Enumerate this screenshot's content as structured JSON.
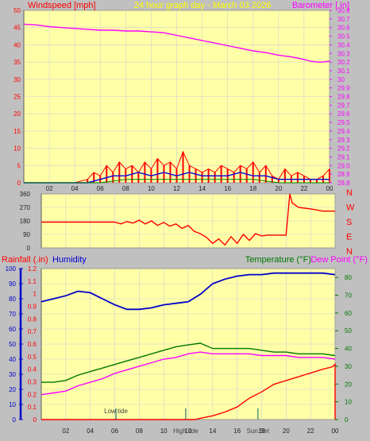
{
  "title": "24 hour graph day - March 03 2026",
  "colors": {
    "plot_bg": "#ffffa8",
    "frame_bg": "#c0c0c0",
    "wind_gust": "#ff0000",
    "wind_avg": "#0000dd",
    "wind_extra": "#008000",
    "barometer": "#ff00ff",
    "direction": "#ff0000",
    "humidity": "#0000cc",
    "temperature": "#007700",
    "dewpoint": "#ff00ff",
    "rainfall": "#ff0000",
    "grid": "#d0d0d0"
  },
  "x_ticks": [
    "02",
    "04",
    "06",
    "08",
    "10",
    "12",
    "14",
    "16",
    "18",
    "20",
    "22",
    "00"
  ],
  "chart_data": [
    {
      "type": "line",
      "name": "wind-barometer",
      "left_label": "Windspeed [mph]",
      "right_label": "Barometer [.in]",
      "left_ticks": [
        "0",
        "5",
        "10",
        "15",
        "20",
        "25",
        "30",
        "35",
        "40",
        "45",
        "50"
      ],
      "right_ticks": [
        "28.8",
        "28.9",
        "29.0",
        "29.1",
        "29.2",
        "29.3",
        "29.4",
        "29.5",
        "29.6",
        "29.7",
        "29.8",
        "29.9",
        "30",
        "30.1",
        "30.2",
        "30.3",
        "30.4",
        "30.5",
        "30.6",
        "30.7",
        "30.8"
      ],
      "ylim_left": [
        0,
        50
      ],
      "ylim_right": [
        28.8,
        30.8
      ],
      "x_hours": [
        0,
        24
      ],
      "barometer": {
        "x": [
          0,
          1,
          2,
          3,
          4,
          5,
          6,
          7,
          8,
          9,
          10,
          11,
          12,
          13,
          14,
          15,
          16,
          17,
          18,
          19,
          20,
          21,
          22,
          22.5,
          23,
          23.5,
          24
        ],
        "values": [
          30.64,
          30.63,
          30.61,
          30.6,
          30.59,
          30.58,
          30.57,
          30.57,
          30.56,
          30.56,
          30.55,
          30.54,
          30.51,
          30.48,
          30.45,
          30.42,
          30.39,
          30.36,
          30.33,
          30.31,
          30.28,
          30.26,
          30.23,
          30.21,
          30.2,
          30.2,
          30.21
        ]
      },
      "wind_gust": {
        "x": [
          0,
          4,
          5,
          5.5,
          6,
          6.5,
          7,
          7.5,
          8,
          8.5,
          9,
          9.5,
          10,
          10.5,
          11,
          11.5,
          12,
          12.5,
          13,
          13.5,
          14,
          14.5,
          15,
          15.5,
          16,
          16.5,
          17,
          17.5,
          18,
          18.5,
          19,
          19.5,
          20,
          20.5,
          21,
          21.5,
          22,
          22.5,
          23,
          23.5,
          24
        ],
        "values": [
          0,
          0,
          1,
          3,
          2,
          5,
          3,
          6,
          4,
          5,
          3,
          6,
          4,
          7,
          5,
          6,
          4,
          9,
          5,
          4,
          3,
          4,
          3,
          5,
          4,
          3,
          5,
          4,
          6,
          3,
          5,
          2,
          1,
          4,
          2,
          3,
          2,
          1,
          1,
          2,
          4
        ]
      },
      "wind_avg": {
        "x": [
          0,
          5,
          6,
          7,
          8,
          9,
          10,
          11,
          12,
          13,
          14,
          15,
          16,
          17,
          18,
          19,
          20,
          21,
          22,
          23,
          24
        ],
        "values": [
          0,
          0,
          1,
          2,
          2,
          3,
          2,
          3,
          2,
          3,
          2,
          2,
          2,
          3,
          2,
          2,
          1,
          1,
          1,
          1,
          1
        ]
      },
      "wind_extra": {
        "x": [
          0,
          6,
          8,
          10,
          12,
          14,
          16,
          18,
          20,
          22,
          24
        ],
        "values": [
          0,
          0,
          1,
          1,
          1,
          1,
          1,
          1,
          0,
          0,
          0
        ]
      }
    },
    {
      "type": "line",
      "name": "wind-direction",
      "left_ticks": [
        "0",
        "90",
        "180",
        "270",
        "360"
      ],
      "right_ticks": [
        "N",
        "W",
        "S",
        "E",
        "N"
      ],
      "ylim": [
        0,
        360
      ],
      "x": [
        0,
        6,
        6.5,
        7,
        7.5,
        8,
        8.5,
        9,
        9.5,
        10,
        10.5,
        11,
        11.5,
        12,
        12.5,
        13,
        13.5,
        14,
        14.5,
        15,
        15.5,
        16,
        16.5,
        17,
        17.5,
        18,
        18.5,
        19,
        19.5,
        20,
        20.3,
        20.5,
        21,
        22,
        23,
        24
      ],
      "values": [
        172,
        172,
        160,
        175,
        165,
        185,
        160,
        180,
        150,
        170,
        145,
        160,
        130,
        150,
        110,
        95,
        70,
        30,
        60,
        20,
        75,
        30,
        90,
        50,
        95,
        80,
        85,
        85,
        85,
        85,
        360,
        300,
        270,
        260,
        245,
        245
      ]
    },
    {
      "type": "line",
      "name": "rain-humidity-temperature",
      "left_label_1": "Rainfall (.in)",
      "left_label_2": "Humidity",
      "right_label_1": "Temperature (°F)",
      "right_label_2": "Dew Point (°F)",
      "humidity_ticks": [
        "0",
        "10",
        "20",
        "30",
        "40",
        "50",
        "60",
        "70",
        "80",
        "90",
        "100"
      ],
      "rain_ticks": [
        "0",
        "0.1",
        "0.2",
        "0.3",
        "0.4",
        "0.5",
        "0.6",
        "0.7",
        "0.8",
        "0.9",
        "1",
        "1.1",
        "1.2"
      ],
      "temp_ticks": [
        "0",
        "10",
        "20",
        "30",
        "40",
        "50",
        "60",
        "70",
        "80"
      ],
      "ylim_humidity": [
        0,
        100
      ],
      "ylim_rain": [
        0,
        1.2
      ],
      "ylim_temp": [
        0,
        85
      ],
      "humidity": {
        "x": [
          0,
          1,
          2,
          3,
          4,
          5,
          6,
          7,
          8,
          9,
          10,
          11,
          12,
          13,
          14,
          15,
          16,
          17,
          18,
          19,
          20,
          21,
          22,
          23,
          24
        ],
        "values": [
          78,
          80,
          82,
          85,
          84,
          80,
          76,
          73,
          73,
          74,
          76,
          77,
          78,
          83,
          90,
          93,
          95,
          96,
          96,
          97,
          97,
          97,
          97,
          97,
          96
        ]
      },
      "temperature": {
        "x": [
          0,
          1,
          2,
          3,
          4,
          5,
          6,
          7,
          8,
          9,
          10,
          11,
          12,
          13,
          14,
          15,
          16,
          17,
          18,
          19,
          20,
          21,
          22,
          23,
          24
        ],
        "values": [
          21,
          21,
          22,
          25,
          27,
          29,
          31,
          33,
          35,
          37,
          39,
          41,
          42,
          43,
          40,
          40,
          40,
          40,
          39,
          38,
          38,
          37,
          37,
          37,
          36
        ]
      },
      "dewpoint": {
        "x": [
          0,
          1,
          2,
          3,
          4,
          5,
          6,
          7,
          8,
          9,
          10,
          11,
          12,
          13,
          14,
          15,
          16,
          17,
          18,
          19,
          20,
          21,
          22,
          23,
          24
        ],
        "values": [
          14,
          15,
          16,
          19,
          21,
          23,
          26,
          28,
          30,
          32,
          34,
          35,
          37,
          38,
          37,
          37,
          37,
          37,
          36,
          36,
          36,
          35,
          35,
          35,
          34
        ]
      },
      "rainfall": {
        "x": [
          0,
          12.5,
          13,
          14,
          15,
          16,
          17,
          18,
          19,
          20,
          21,
          22,
          23,
          23.8,
          24,
          24
        ],
        "values": [
          0,
          0,
          0.01,
          0.03,
          0.06,
          0.1,
          0.17,
          0.22,
          0.28,
          0.31,
          0.34,
          0.37,
          0.4,
          0.42,
          0.44,
          0
        ]
      },
      "markers": [
        {
          "label": "Low tide",
          "hour": 6.1
        },
        {
          "label": "High tide",
          "hour": 11.8
        },
        {
          "label": "Sun Set",
          "hour": 17.7
        }
      ]
    }
  ]
}
